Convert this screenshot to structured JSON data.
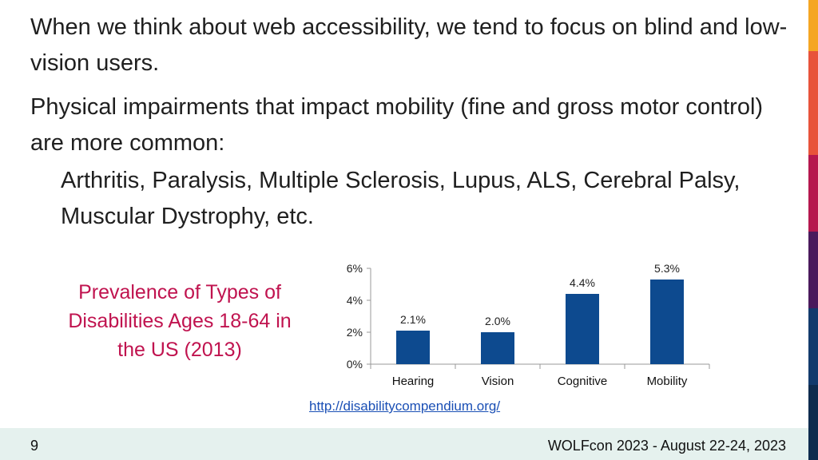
{
  "content": {
    "paragraphs": [
      "When we think about web accessibility, we tend to focus on blind and low-vision users.",
      "Physical impairments that impact mobility (fine and gross motor control) are more common:"
    ],
    "sub_paragraph": "Arthritis, Paralysis, Multiple Sclerosis, Lupus, ALS, Cerebral Palsy, Muscular Dystrophy, etc.",
    "url": "http://disabilitycompendium.org/"
  },
  "footer": {
    "page_number": "9",
    "text": "WOLFcon 2023 - August 22-24, 2023"
  },
  "colors": {
    "bar": "#0d4a8f",
    "title": "#c0134f",
    "stripe": [
      "#f5a623",
      "#e8533a",
      "#b6184e",
      "#4a1a5c",
      "#123a6d",
      "#0e2b4e"
    ]
  },
  "chart_data": {
    "type": "bar",
    "title": "Prevalence of Types of Disabilities Ages 18-64 in the US (2013)",
    "categories": [
      "Hearing",
      "Vision",
      "Cognitive",
      "Mobility"
    ],
    "values": [
      2.1,
      2.0,
      4.4,
      5.3
    ],
    "data_labels": [
      "2.1%",
      "2.0%",
      "4.4%",
      "5.3%"
    ],
    "y_ticks": [
      "0%",
      "2%",
      "4%",
      "6%"
    ],
    "ylim": [
      0,
      6
    ],
    "xlabel": "",
    "ylabel": "",
    "grid": false,
    "legend": "none"
  }
}
